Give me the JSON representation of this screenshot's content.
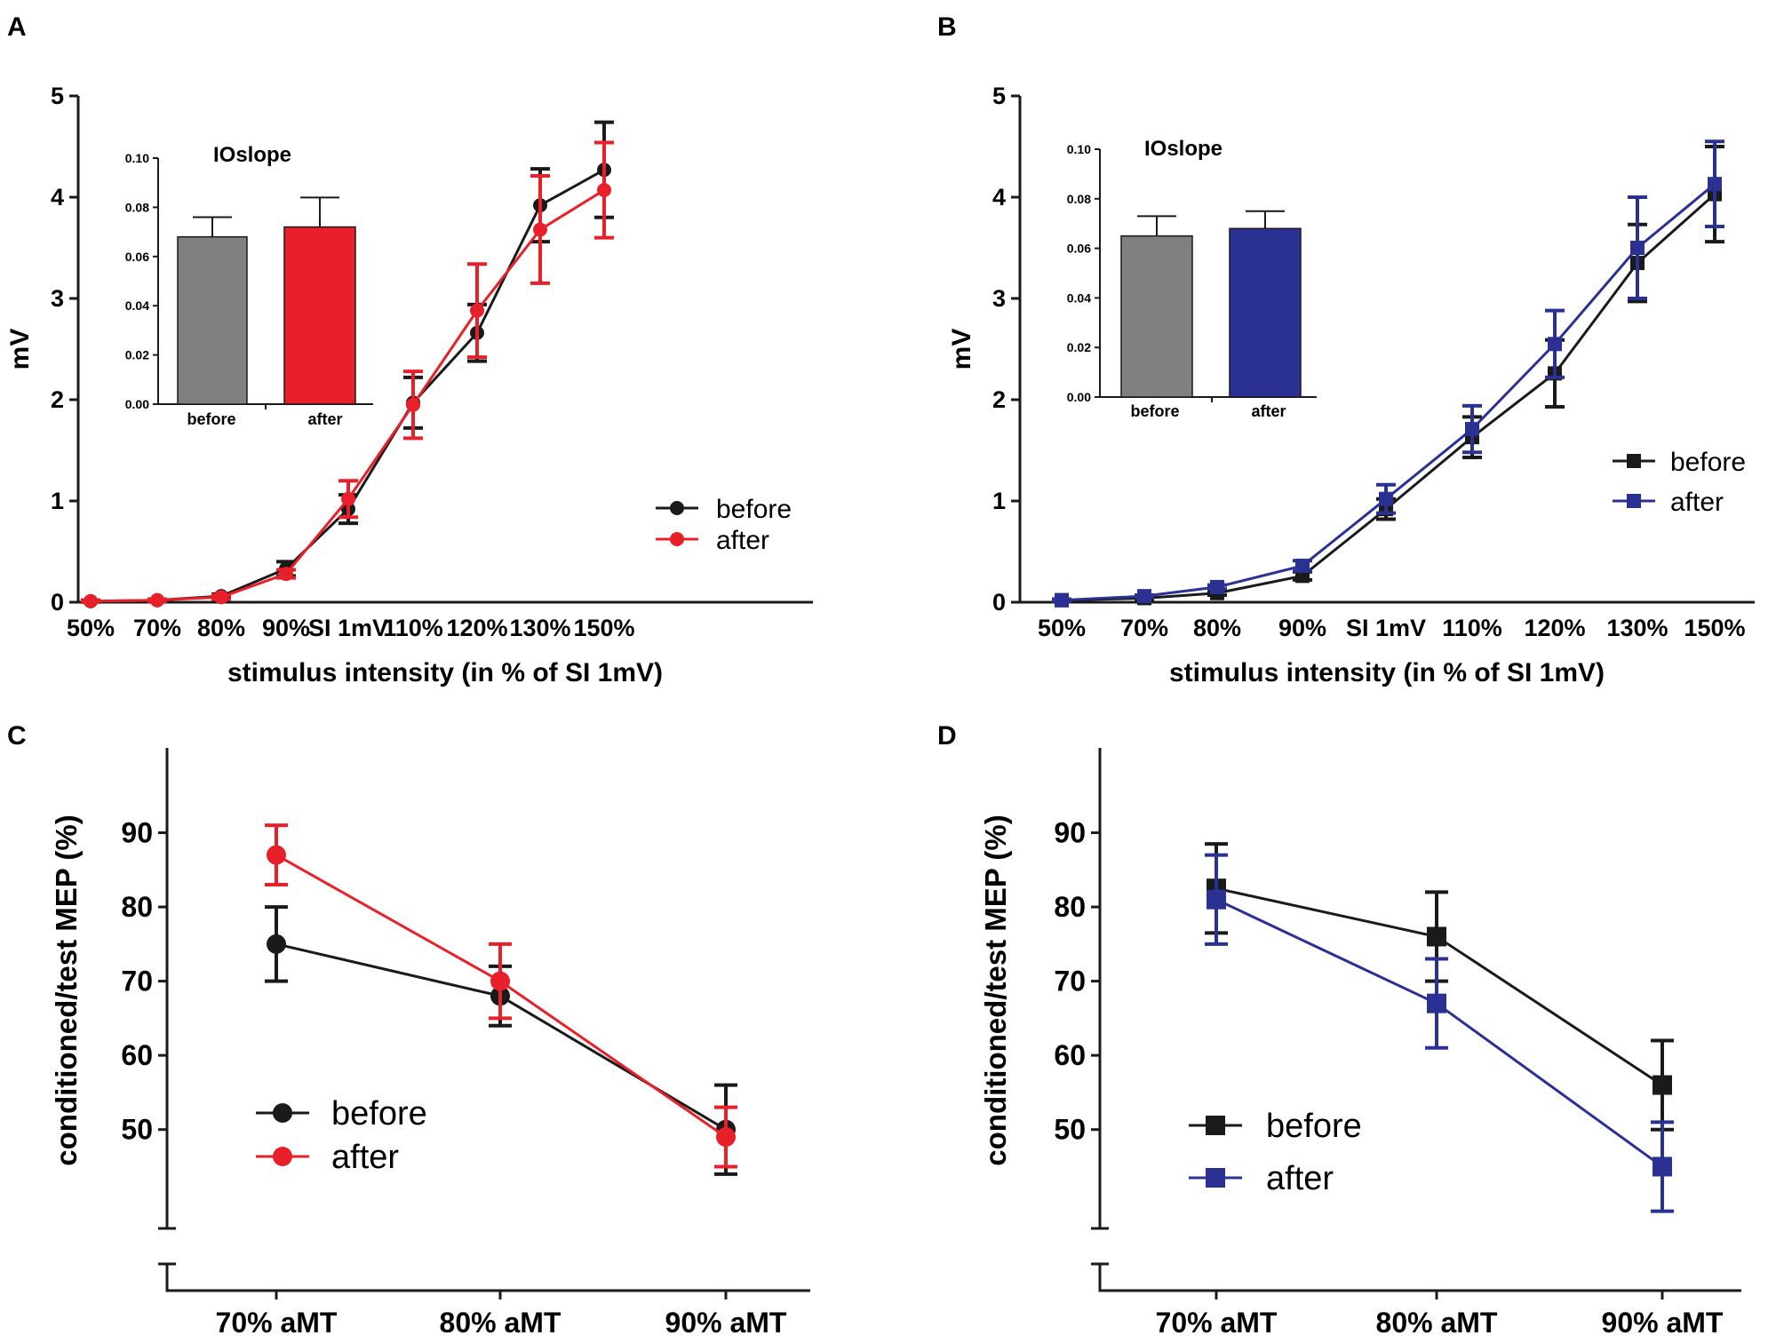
{
  "colors": {
    "before": "#1a1a1a",
    "after_red": "#e8202a",
    "after_blue": "#2b3192",
    "bar_before": "#808080",
    "axis": "#1a1a1a"
  },
  "chart_data": [
    {
      "panel": "A",
      "type": "line",
      "marker": "circle",
      "categories": [
        "50%",
        "70%",
        "80%",
        "90%",
        "SI 1mV",
        "110%",
        "120%",
        "130%",
        "150%"
      ],
      "xlabel": "stimulus intensity (in % of SI 1mV)",
      "ylabel": "mV",
      "ylim": [
        0,
        5
      ],
      "yticks": [
        "0",
        "1",
        "2",
        "3",
        "4",
        "5"
      ],
      "series": [
        {
          "name": "before",
          "values": [
            0.01,
            0.02,
            0.06,
            0.33,
            0.92,
            1.97,
            2.66,
            3.92,
            4.27
          ],
          "errors": [
            0.01,
            0.01,
            0.02,
            0.07,
            0.14,
            0.25,
            0.28,
            0.36,
            0.47
          ]
        },
        {
          "name": "after",
          "values": [
            0.01,
            0.02,
            0.05,
            0.28,
            1.02,
            1.95,
            2.88,
            3.68,
            4.07
          ],
          "errors": [
            0.01,
            0.01,
            0.02,
            0.04,
            0.18,
            0.33,
            0.46,
            0.53,
            0.47
          ]
        }
      ],
      "inset": {
        "type": "bar",
        "title": "IOslope",
        "categories": [
          "before",
          "after"
        ],
        "values": [
          0.068,
          0.072
        ],
        "errors": [
          0.008,
          0.012
        ],
        "ylim": [
          0,
          0.1
        ],
        "yticks": [
          "0.00",
          "0.02",
          "0.04",
          "0.06",
          "0.08",
          "0.10"
        ]
      }
    },
    {
      "panel": "B",
      "type": "line",
      "marker": "square",
      "categories": [
        "50%",
        "70%",
        "80%",
        "90%",
        "SI 1mV",
        "110%",
        "120%",
        "130%",
        "150%"
      ],
      "xlabel": "stimulus intensity (in % of SI 1mV)",
      "ylabel": "mV",
      "ylim": [
        0,
        5
      ],
      "yticks": [
        "0",
        "1",
        "2",
        "3",
        "4",
        "5"
      ],
      "series": [
        {
          "name": "before",
          "values": [
            0.02,
            0.04,
            0.09,
            0.26,
            0.92,
            1.63,
            2.26,
            3.35,
            4.03
          ],
          "errors": [
            0.01,
            0.01,
            0.02,
            0.04,
            0.1,
            0.2,
            0.33,
            0.38,
            0.47
          ]
        },
        {
          "name": "after",
          "values": [
            0.02,
            0.06,
            0.15,
            0.36,
            1.02,
            1.71,
            2.55,
            3.5,
            4.13
          ],
          "errors": [
            0.01,
            0.01,
            0.02,
            0.05,
            0.14,
            0.23,
            0.33,
            0.5,
            0.42
          ]
        }
      ],
      "inset": {
        "type": "bar",
        "title": "IOslope",
        "categories": [
          "before",
          "after"
        ],
        "values": [
          0.065,
          0.068
        ],
        "errors": [
          0.008,
          0.007
        ],
        "ylim": [
          0,
          0.1
        ],
        "yticks": [
          "0.00",
          "0.02",
          "0.04",
          "0.06",
          "0.08",
          "0.10"
        ]
      }
    },
    {
      "panel": "C",
      "type": "line",
      "marker": "circle",
      "categories": [
        "70% aMT",
        "80% aMT",
        "90% aMT"
      ],
      "xlabel": "",
      "ylabel": "conditioned/test MEP (%)",
      "ylim": [
        35,
        100
      ],
      "yticks": [
        "50",
        "60",
        "70",
        "80",
        "90"
      ],
      "series": [
        {
          "name": "before",
          "values": [
            75,
            68,
            50
          ],
          "errors": [
            5,
            4,
            6
          ]
        },
        {
          "name": "after",
          "values": [
            87,
            70,
            49
          ],
          "errors": [
            4,
            5,
            4
          ]
        }
      ]
    },
    {
      "panel": "D",
      "type": "line",
      "marker": "square",
      "categories": [
        "70% aMT",
        "80% aMT",
        "90% aMT"
      ],
      "xlabel": "",
      "ylabel": "conditioned/test MEP (%)",
      "ylim": [
        35,
        100
      ],
      "yticks": [
        "50",
        "60",
        "70",
        "80",
        "90"
      ],
      "series": [
        {
          "name": "before",
          "values": [
            82.5,
            76,
            56
          ],
          "errors": [
            6,
            6,
            6
          ]
        },
        {
          "name": "after",
          "values": [
            81,
            67,
            45
          ],
          "errors": [
            6,
            6,
            6
          ]
        }
      ]
    }
  ]
}
